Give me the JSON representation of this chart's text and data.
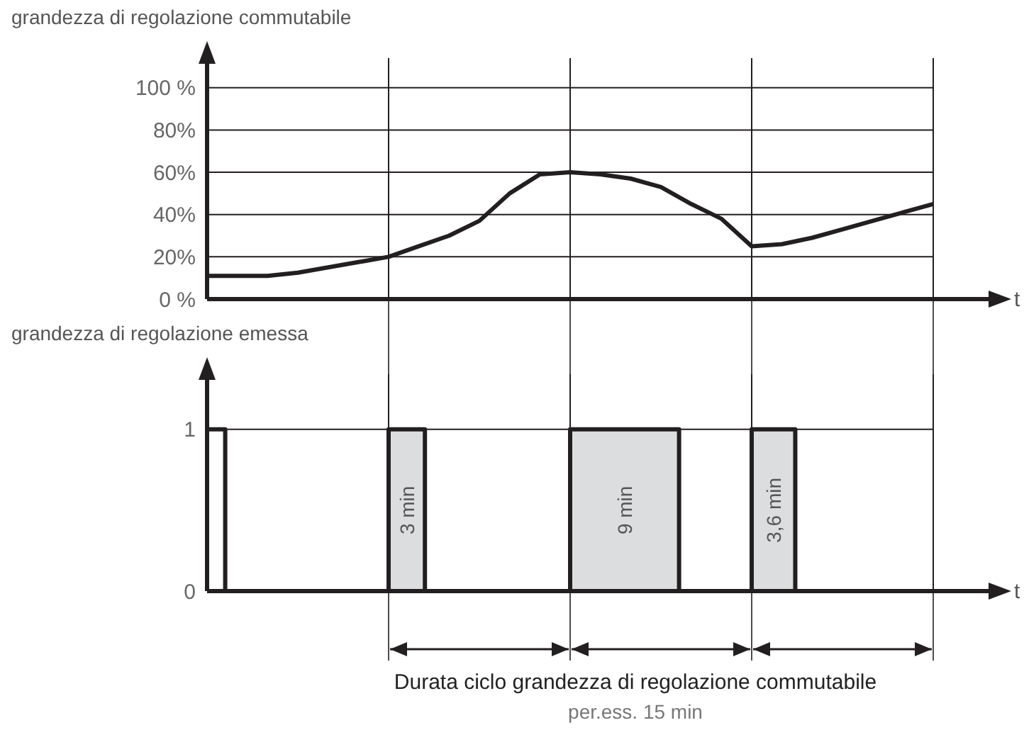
{
  "chart_data": [
    {
      "type": "line",
      "ylabel": "grandezza di regolazione commutabile",
      "xlabel": "t",
      "color": "#231f20",
      "categories": [
        null,
        null,
        null,
        null,
        null,
        null,
        null,
        null,
        null,
        null,
        null,
        null,
        null,
        null,
        null,
        null,
        null,
        null,
        null,
        null,
        null,
        null,
        null,
        null,
        null
      ],
      "values": [
        11,
        11,
        11,
        12.5,
        15,
        17.5,
        20,
        25,
        30,
        37,
        50,
        59,
        60,
        59,
        57,
        53,
        45,
        38,
        25,
        26,
        29,
        33,
        37,
        41,
        45
      ],
      "ylim": [
        0,
        114
      ],
      "yticks": [
        {
          "value": 0,
          "label": "0 %"
        },
        {
          "value": 20,
          "label": "20%"
        },
        {
          "value": 40,
          "label": "40%"
        },
        {
          "value": 60,
          "label": "60%"
        },
        {
          "value": 80,
          "label": "80%"
        },
        {
          "value": 100,
          "label": "100 %"
        }
      ],
      "grid": true,
      "tick_labels": "y"
    },
    {
      "type": "step",
      "ylabel": "grandezza di regolazione emessa",
      "xlabel": "t",
      "color": "#231f20",
      "categories": [
        null,
        null,
        null,
        null,
        null,
        null,
        null,
        null,
        null,
        null,
        null,
        null,
        null,
        null,
        null,
        null,
        null,
        null,
        null,
        null,
        null,
        null,
        null,
        null,
        null,
        null,
        null,
        null,
        null,
        null,
        null,
        null,
        null,
        null,
        null,
        null,
        null,
        null,
        null,
        null,
        null,
        null,
        null,
        null,
        null,
        null,
        null,
        null,
        null,
        null,
        null,
        null,
        null,
        null,
        null,
        null,
        null,
        null,
        null,
        null,
        null,
        null,
        null,
        null,
        null,
        null,
        null,
        null,
        null,
        null,
        null,
        null,
        null,
        null,
        null,
        null,
        null,
        null,
        null,
        null,
        null,
        null,
        null,
        null,
        null,
        null,
        null,
        null,
        null,
        null,
        null,
        null,
        null,
        null,
        null,
        null,
        null,
        null,
        null,
        null,
        null,
        null,
        null,
        null,
        null,
        null,
        null,
        null,
        null,
        null,
        null,
        null,
        null,
        null,
        null,
        null,
        null,
        null,
        null,
        null,
        null,
        null,
        null,
        null,
        null,
        null,
        null,
        null,
        null,
        null,
        null,
        null,
        null,
        null,
        null,
        null,
        null,
        null,
        null,
        null,
        null,
        null,
        null,
        null,
        null,
        null,
        null,
        null,
        null,
        null,
        null,
        null,
        null,
        null,
        null,
        null,
        null,
        null,
        null,
        null,
        null,
        null,
        null,
        null,
        null,
        null,
        null,
        null,
        null,
        null,
        null,
        null,
        null,
        null,
        null,
        null,
        null,
        null,
        null,
        null,
        null,
        null,
        null,
        null,
        null,
        null,
        null,
        null,
        null,
        null,
        null,
        null,
        null,
        null,
        null,
        null,
        null,
        null,
        null,
        null,
        null
      ],
      "values": [
        1,
        1,
        1,
        1,
        1,
        0,
        0,
        0,
        0,
        0,
        0,
        0,
        0,
        0,
        0,
        0,
        0,
        0,
        0,
        0,
        0,
        0,
        0,
        0,
        0,
        0,
        0,
        0,
        0,
        0,
        0,
        0,
        0,
        0,
        0,
        0,
        0,
        0,
        0,
        0,
        0,
        0,
        0,
        0,
        0,
        0,
        0,
        0,
        0,
        0,
        1,
        1,
        1,
        1,
        1,
        1,
        1,
        1,
        1,
        1,
        0,
        0,
        0,
        0,
        0,
        0,
        0,
        0,
        0,
        0,
        0,
        0,
        0,
        0,
        0,
        0,
        0,
        0,
        0,
        0,
        0,
        0,
        0,
        0,
        0,
        0,
        0,
        0,
        0,
        0,
        0,
        0,
        0,
        0,
        0,
        0,
        0,
        0,
        0,
        0,
        1,
        1,
        1,
        1,
        1,
        1,
        1,
        1,
        1,
        1,
        1,
        1,
        1,
        1,
        1,
        1,
        1,
        1,
        1,
        1,
        1,
        1,
        1,
        1,
        1,
        1,
        1,
        1,
        1,
        1,
        0,
        0,
        0,
        0,
        0,
        0,
        0,
        0,
        0,
        0,
        0,
        0,
        0,
        0,
        0,
        0,
        0,
        0,
        0,
        0,
        1,
        1,
        1,
        1,
        1,
        1,
        1,
        1,
        1,
        1,
        1,
        1,
        0,
        0,
        0,
        0,
        0,
        0,
        0,
        0,
        0,
        0,
        0,
        0,
        0,
        0,
        0,
        0,
        0,
        0,
        0,
        0,
        0,
        0,
        0,
        0,
        0,
        0,
        0,
        0,
        0,
        0,
        0,
        0,
        0,
        0,
        0,
        0,
        0,
        0,
        0
      ],
      "ylim": [
        0,
        1.34
      ],
      "yticks": [
        0,
        1
      ],
      "grid": true,
      "tick_labels": "y",
      "annotations": [
        {
          "text": "3 min"
        },
        {
          "text": "9 min"
        },
        {
          "text": "3,6 min"
        },
        "Durata ciclo grandezza di regolazione commutabile",
        "per.ess. 15 min"
      ]
    }
  ]
}
